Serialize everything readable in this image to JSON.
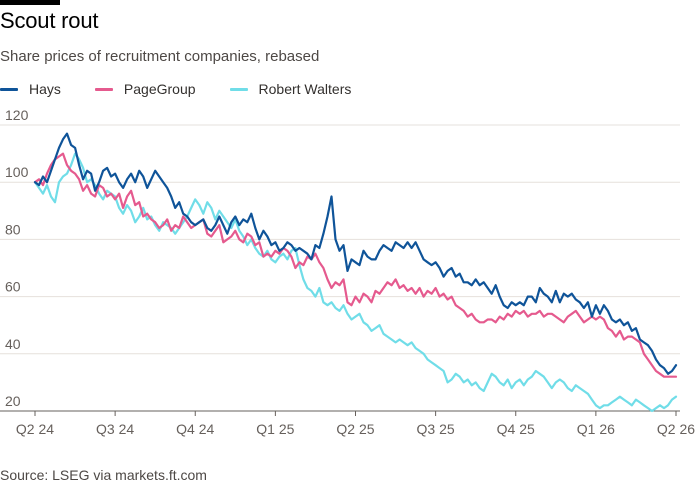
{
  "header": {
    "title": "Scout rout",
    "subtitle": "Share prices of recruitment companies, rebased"
  },
  "footer": {
    "source": "Source: LSEG via markets.ft.com"
  },
  "colors": {
    "hays": "#0f5499",
    "pagegroup": "#e55a8e",
    "robert_walters": "#70dde8",
    "grid": "#e6e1dc",
    "baseline": "#66605c",
    "topbar": "#000000"
  },
  "chart_data": {
    "type": "line",
    "title": "Scout rout",
    "subtitle": "Share prices of recruitment companies, rebased",
    "xlabel": "",
    "ylabel": "",
    "ylim": [
      20,
      120
    ],
    "yticks": [
      20,
      40,
      60,
      80,
      100,
      120
    ],
    "x_tick_labels": [
      "Q2 24",
      "Q3 24",
      "Q4 24",
      "Q1 25",
      "Q2 25",
      "Q3 25",
      "Q4 25",
      "Q1 26",
      "Q2 26"
    ],
    "x_tick_positions": [
      0,
      1,
      2,
      3,
      4,
      5,
      6,
      7,
      8
    ],
    "x_range": [
      0,
      8.05
    ],
    "legend_position": "top-left",
    "grid": true,
    "series": [
      {
        "name": "Hays",
        "color_key": "hays",
        "x": [
          0.0,
          0.05,
          0.1,
          0.15,
          0.2,
          0.25,
          0.3,
          0.35,
          0.4,
          0.45,
          0.5,
          0.55,
          0.6,
          0.65,
          0.7,
          0.75,
          0.8,
          0.85,
          0.9,
          0.95,
          1.0,
          1.05,
          1.1,
          1.15,
          1.2,
          1.25,
          1.3,
          1.35,
          1.4,
          1.45,
          1.5,
          1.55,
          1.6,
          1.65,
          1.7,
          1.75,
          1.8,
          1.85,
          1.9,
          1.95,
          2.0,
          2.05,
          2.1,
          2.15,
          2.2,
          2.25,
          2.3,
          2.35,
          2.4,
          2.45,
          2.5,
          2.55,
          2.6,
          2.65,
          2.7,
          2.75,
          2.8,
          2.85,
          2.9,
          2.95,
          3.0,
          3.05,
          3.1,
          3.15,
          3.2,
          3.25,
          3.3,
          3.35,
          3.4,
          3.45,
          3.5,
          3.55,
          3.6,
          3.65,
          3.7,
          3.75,
          3.8,
          3.85,
          3.9,
          3.95,
          4.0,
          4.05,
          4.1,
          4.15,
          4.2,
          4.25,
          4.3,
          4.35,
          4.4,
          4.45,
          4.5,
          4.55,
          4.6,
          4.65,
          4.7,
          4.75,
          4.8,
          4.85,
          4.9,
          4.95,
          5.0,
          5.05,
          5.1,
          5.15,
          5.2,
          5.25,
          5.3,
          5.35,
          5.4,
          5.45,
          5.5,
          5.55,
          5.6,
          5.65,
          5.7,
          5.75,
          5.8,
          5.85,
          5.9,
          5.95,
          6.0,
          6.05,
          6.1,
          6.15,
          6.2,
          6.25,
          6.3,
          6.35,
          6.4,
          6.45,
          6.5,
          6.55,
          6.6,
          6.65,
          6.7,
          6.75,
          6.8,
          6.85,
          6.9,
          6.95,
          7.0,
          7.05,
          7.1,
          7.15,
          7.2,
          7.25,
          7.3,
          7.35,
          7.4,
          7.45,
          7.5,
          7.55,
          7.6,
          7.65,
          7.7,
          7.75,
          7.8,
          7.85,
          7.9,
          7.95,
          8.0
        ],
        "values": [
          100,
          99,
          102,
          100,
          104,
          108,
          112,
          115,
          117,
          113,
          112,
          106,
          101,
          104,
          103,
          97,
          100,
          104,
          105,
          102,
          103,
          100,
          98,
          101,
          103,
          100,
          104,
          102,
          98,
          101,
          104,
          102,
          100,
          98,
          95,
          91,
          93,
          89,
          88,
          86,
          85,
          86,
          87,
          84,
          83,
          85,
          88,
          85,
          82,
          86,
          88,
          85,
          87,
          86,
          89,
          84,
          80,
          83,
          81,
          78,
          79,
          76,
          77,
          79,
          78,
          76,
          77,
          76,
          75,
          73,
          78,
          77,
          82,
          88,
          95,
          80,
          76,
          78,
          69,
          73,
          72,
          71,
          76,
          74,
          73,
          73,
          76,
          78,
          77,
          76,
          79,
          78,
          77,
          79,
          77,
          79,
          76,
          73,
          72,
          71,
          72,
          70,
          67,
          69,
          70,
          67,
          68,
          65,
          65,
          64,
          66,
          64,
          65,
          63,
          61,
          64,
          60,
          57,
          56,
          58,
          57,
          58,
          57,
          60,
          60,
          58,
          63,
          61,
          60,
          58,
          62,
          58,
          61,
          60,
          61,
          59,
          58,
          56,
          58,
          53,
          57,
          54,
          57,
          55,
          52,
          51,
          52,
          50,
          51,
          48,
          49,
          45,
          44,
          43,
          41,
          38,
          36,
          35,
          33,
          34,
          36
        ]
      },
      {
        "name": "PageGroup",
        "color_key": "pagegroup",
        "x": [
          0.0,
          0.05,
          0.1,
          0.15,
          0.2,
          0.25,
          0.3,
          0.35,
          0.4,
          0.45,
          0.5,
          0.55,
          0.6,
          0.65,
          0.7,
          0.75,
          0.8,
          0.85,
          0.9,
          0.95,
          1.0,
          1.05,
          1.1,
          1.15,
          1.2,
          1.25,
          1.3,
          1.35,
          1.4,
          1.45,
          1.5,
          1.55,
          1.6,
          1.65,
          1.7,
          1.75,
          1.8,
          1.85,
          1.9,
          1.95,
          2.0,
          2.05,
          2.1,
          2.15,
          2.2,
          2.25,
          2.3,
          2.35,
          2.4,
          2.45,
          2.5,
          2.55,
          2.6,
          2.65,
          2.7,
          2.75,
          2.8,
          2.85,
          2.9,
          2.95,
          3.0,
          3.05,
          3.1,
          3.15,
          3.2,
          3.25,
          3.3,
          3.35,
          3.4,
          3.45,
          3.5,
          3.55,
          3.6,
          3.65,
          3.7,
          3.75,
          3.8,
          3.85,
          3.9,
          3.95,
          4.0,
          4.05,
          4.1,
          4.15,
          4.2,
          4.25,
          4.3,
          4.35,
          4.4,
          4.45,
          4.5,
          4.55,
          4.6,
          4.65,
          4.7,
          4.75,
          4.8,
          4.85,
          4.9,
          4.95,
          5.0,
          5.05,
          5.1,
          5.15,
          5.2,
          5.25,
          5.3,
          5.35,
          5.4,
          5.45,
          5.5,
          5.55,
          5.6,
          5.65,
          5.7,
          5.75,
          5.8,
          5.85,
          5.9,
          5.95,
          6.0,
          6.05,
          6.1,
          6.15,
          6.2,
          6.25,
          6.3,
          6.35,
          6.4,
          6.45,
          6.5,
          6.55,
          6.6,
          6.65,
          6.7,
          6.75,
          6.8,
          6.85,
          6.9,
          6.95,
          7.0,
          7.05,
          7.1,
          7.15,
          7.2,
          7.25,
          7.3,
          7.35,
          7.4,
          7.45,
          7.5,
          7.55,
          7.6,
          7.65,
          7.7,
          7.75,
          7.8,
          7.85,
          7.9,
          7.95,
          8.0
        ],
        "values": [
          100,
          101,
          99,
          103,
          106,
          108,
          109,
          110,
          106,
          104,
          103,
          101,
          97,
          99,
          96,
          95,
          99,
          98,
          95,
          96,
          94,
          96,
          91,
          95,
          97,
          92,
          93,
          88,
          89,
          87,
          86,
          84,
          85,
          87,
          83,
          85,
          84,
          88,
          86,
          84,
          85,
          86,
          87,
          82,
          81,
          83,
          85,
          79,
          80,
          81,
          83,
          80,
          79,
          82,
          81,
          78,
          79,
          74,
          75,
          74,
          76,
          75,
          77,
          76,
          74,
          70,
          72,
          71,
          74,
          73,
          75,
          72,
          70,
          66,
          63,
          65,
          64,
          66,
          58,
          57,
          60,
          58,
          61,
          60,
          58,
          62,
          61,
          63,
          65,
          64,
          66,
          63,
          64,
          62,
          63,
          61,
          63,
          60,
          62,
          61,
          63,
          60,
          61,
          59,
          60,
          57,
          56,
          55,
          53,
          54,
          52,
          51,
          51,
          52,
          52,
          51,
          53,
          52,
          54,
          53,
          55,
          54,
          55,
          53,
          54,
          54,
          55,
          53,
          54,
          54,
          53,
          52,
          51,
          53,
          54,
          55,
          53,
          51,
          52,
          53,
          52,
          53,
          52,
          49,
          48,
          46,
          48,
          45,
          46,
          46,
          45,
          44,
          40,
          38,
          36,
          34,
          33,
          32,
          32,
          32,
          32
        ]
      },
      {
        "name": "Robert Walters",
        "color_key": "robert_walters",
        "x": [
          0.0,
          0.05,
          0.1,
          0.15,
          0.2,
          0.25,
          0.3,
          0.35,
          0.4,
          0.45,
          0.5,
          0.55,
          0.6,
          0.65,
          0.7,
          0.75,
          0.8,
          0.85,
          0.9,
          0.95,
          1.0,
          1.05,
          1.1,
          1.15,
          1.2,
          1.25,
          1.3,
          1.35,
          1.4,
          1.45,
          1.5,
          1.55,
          1.6,
          1.65,
          1.7,
          1.75,
          1.8,
          1.85,
          1.9,
          1.95,
          2.0,
          2.05,
          2.1,
          2.15,
          2.2,
          2.25,
          2.3,
          2.35,
          2.4,
          2.45,
          2.5,
          2.55,
          2.6,
          2.65,
          2.7,
          2.75,
          2.8,
          2.85,
          2.9,
          2.95,
          3.0,
          3.05,
          3.1,
          3.15,
          3.2,
          3.25,
          3.3,
          3.35,
          3.4,
          3.45,
          3.5,
          3.55,
          3.6,
          3.65,
          3.7,
          3.75,
          3.8,
          3.85,
          3.9,
          3.95,
          4.0,
          4.05,
          4.1,
          4.15,
          4.2,
          4.25,
          4.3,
          4.35,
          4.4,
          4.45,
          4.5,
          4.55,
          4.6,
          4.65,
          4.7,
          4.75,
          4.8,
          4.85,
          4.9,
          4.95,
          5.0,
          5.05,
          5.1,
          5.15,
          5.2,
          5.25,
          5.3,
          5.35,
          5.4,
          5.45,
          5.5,
          5.55,
          5.6,
          5.65,
          5.7,
          5.75,
          5.8,
          5.85,
          5.9,
          5.95,
          6.0,
          6.05,
          6.1,
          6.15,
          6.2,
          6.25,
          6.3,
          6.35,
          6.4,
          6.45,
          6.5,
          6.55,
          6.6,
          6.65,
          6.7,
          6.75,
          6.8,
          6.85,
          6.9,
          6.95,
          7.0,
          7.05,
          7.1,
          7.15,
          7.2,
          7.25,
          7.3,
          7.35,
          7.4,
          7.45,
          7.5,
          7.55,
          7.6,
          7.65,
          7.7,
          7.75,
          7.8,
          7.85,
          7.9,
          7.95,
          8.0
        ],
        "values": [
          100,
          98,
          96,
          99,
          95,
          93,
          100,
          102,
          103,
          106,
          110,
          108,
          105,
          100,
          101,
          99,
          96,
          94,
          97,
          96,
          95,
          91,
          89,
          92,
          90,
          86,
          88,
          91,
          87,
          88,
          85,
          83,
          86,
          85,
          84,
          82,
          84,
          86,
          88,
          91,
          94,
          92,
          89,
          93,
          91,
          87,
          90,
          88,
          86,
          84,
          87,
          83,
          81,
          78,
          80,
          77,
          75,
          74,
          76,
          73,
          72,
          74,
          75,
          73,
          76,
          77,
          71,
          66,
          63,
          62,
          60,
          63,
          58,
          57,
          58,
          56,
          55,
          57,
          54,
          52,
          53,
          54,
          51,
          50,
          48,
          49,
          50,
          47,
          46,
          45,
          44,
          45,
          44,
          43,
          44,
          42,
          41,
          40,
          38,
          37,
          36,
          35,
          34,
          30,
          31,
          33,
          32,
          30,
          31,
          29,
          30,
          28,
          27,
          30,
          33,
          32,
          30,
          29,
          31,
          28,
          30,
          31,
          29,
          31,
          32,
          34,
          33,
          32,
          30,
          28,
          30,
          31,
          30,
          28,
          27,
          29,
          28,
          27,
          26,
          24,
          22,
          21,
          22,
          22,
          23,
          24,
          25,
          24,
          23,
          22,
          24,
          23,
          22,
          21,
          20,
          21,
          22,
          21,
          22,
          24,
          25
        ]
      }
    ]
  }
}
